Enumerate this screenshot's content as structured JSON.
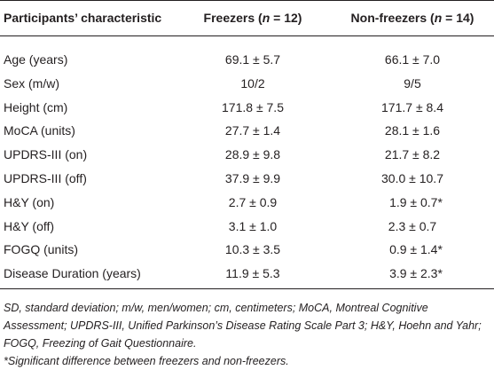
{
  "table": {
    "header": [
      {
        "text": "Participants’ characteristic"
      },
      {
        "prefix": "Freezers (",
        "italic": "n",
        "suffix": " = 12)"
      },
      {
        "prefix": "Non-freezers (",
        "italic": "n",
        "suffix": " = 14)"
      }
    ],
    "rows": [
      [
        "Age (years)",
        "69.1 ± 5.7",
        "66.1 ± 7.0"
      ],
      [
        "Sex (m/w)",
        "10/2",
        "9/5"
      ],
      [
        "Height (cm)",
        "171.8 ± 7.5",
        "171.7 ± 8.4"
      ],
      [
        "MoCA (units)",
        "27.7 ± 1.4",
        "28.1 ± 1.6"
      ],
      [
        "UPDRS-III (on)",
        "28.9 ± 9.8",
        "21.7 ± 8.2"
      ],
      [
        "UPDRS-III (off)",
        "37.9 ± 9.9",
        "30.0 ± 10.7"
      ],
      [
        "H&Y (on)",
        "2.7 ± 0.9",
        "1.9 ± 0.7*"
      ],
      [
        "H&Y (off)",
        "3.1 ± 1.0",
        "2.3 ± 0.7"
      ],
      [
        "FOGQ (units)",
        "10.3 ± 3.5",
        "0.9 ± 1.4*"
      ],
      [
        "Disease Duration (years)",
        "11.9 ± 5.3",
        "3.9 ± 2.3*"
      ]
    ]
  },
  "footnotes": [
    "SD, standard deviation; m/w, men/women; cm, centimeters; MoCA, Montreal Cognitive Assessment; UPDRS-III, Unified Parkinson’s Disease Rating Scale Part 3; H&Y, Hoehn and Yahr; FOGQ, Freezing of Gait Questionnaire.",
    "*Significant difference between freezers and non-freezers."
  ]
}
